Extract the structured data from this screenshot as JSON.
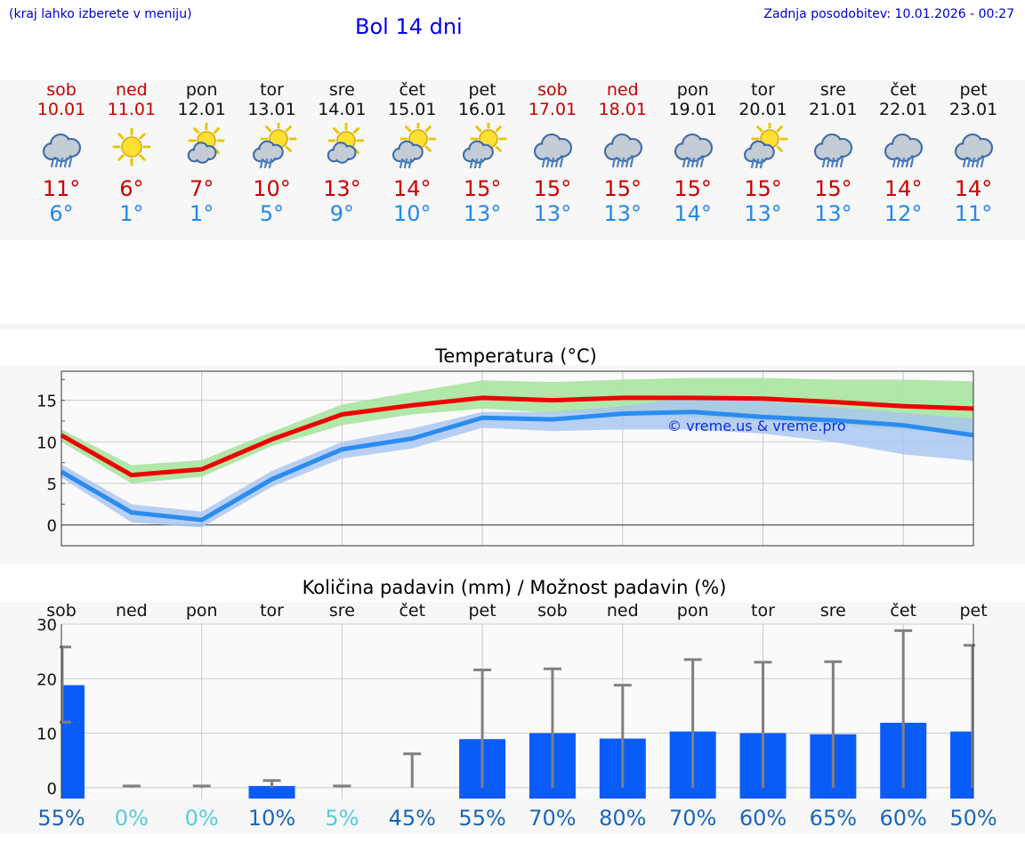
{
  "header": {
    "region_hint": "(kraj lahko izberete v meniju)",
    "title": "Bol 14 dni",
    "last_update": "Zadnja posodobitev: 10.01.2026 - 00:27"
  },
  "days": [
    {
      "name": "sob",
      "date": "10.01",
      "weekend": true,
      "icon": "cloud-rain-icon",
      "tmax": "11°",
      "tmin": "6°"
    },
    {
      "name": "ned",
      "date": "11.01",
      "weekend": true,
      "icon": "sun-icon",
      "tmax": "6°",
      "tmin": "1°"
    },
    {
      "name": "pon",
      "date": "12.01",
      "weekend": false,
      "icon": "sun-cloud-icon",
      "tmax": "7°",
      "tmin": "1°"
    },
    {
      "name": "tor",
      "date": "13.01",
      "weekend": false,
      "icon": "sun-cloud-rain-icon",
      "tmax": "10°",
      "tmin": "5°"
    },
    {
      "name": "sre",
      "date": "14.01",
      "weekend": false,
      "icon": "sun-cloud-icon",
      "tmax": "13°",
      "tmin": "9°"
    },
    {
      "name": "čet",
      "date": "15.01",
      "weekend": false,
      "icon": "sun-cloud-rain-icon",
      "tmax": "14°",
      "tmin": "10°"
    },
    {
      "name": "pet",
      "date": "16.01",
      "weekend": false,
      "icon": "sun-cloud-rain-icon",
      "tmax": "15°",
      "tmin": "13°"
    },
    {
      "name": "sob",
      "date": "17.01",
      "weekend": true,
      "icon": "cloud-rain-icon",
      "tmax": "15°",
      "tmin": "13°"
    },
    {
      "name": "ned",
      "date": "18.01",
      "weekend": true,
      "icon": "cloud-rain-icon",
      "tmax": "15°",
      "tmin": "13°"
    },
    {
      "name": "pon",
      "date": "19.01",
      "weekend": false,
      "icon": "cloud-rain-icon",
      "tmax": "15°",
      "tmin": "14°"
    },
    {
      "name": "tor",
      "date": "20.01",
      "weekend": false,
      "icon": "sun-cloud-rain-icon",
      "tmax": "15°",
      "tmin": "13°"
    },
    {
      "name": "sre",
      "date": "21.01",
      "weekend": false,
      "icon": "cloud-rain-icon",
      "tmax": "15°",
      "tmin": "13°"
    },
    {
      "name": "čet",
      "date": "22.01",
      "weekend": false,
      "icon": "cloud-rain-icon",
      "tmax": "14°",
      "tmin": "12°"
    },
    {
      "name": "pet",
      "date": "23.01",
      "weekend": false,
      "icon": "cloud-rain-icon",
      "tmax": "14°",
      "tmin": "11°"
    }
  ],
  "colors": {
    "max_line": "#ee0000",
    "min_line": "#2a8cf0",
    "max_band": "#a8e4a0",
    "min_band": "#a8c4f2",
    "bar": "#0a5cf8",
    "whisker": "#808080",
    "weekend": "#cc0000",
    "pct_high": "#1a66b8",
    "pct_low": "#55ccdd"
  },
  "chart_data": [
    {
      "type": "line",
      "title": "Temperatura (°C)",
      "watermark": "© vreme.us & vreme.pro",
      "x_index": [
        0,
        1,
        2,
        3,
        4,
        5,
        6,
        7,
        8,
        9,
        10,
        11,
        12,
        13
      ],
      "y_ticks": [
        "0",
        "5",
        "10",
        "15"
      ],
      "ylim": [
        -2.5,
        18.5
      ],
      "series": [
        {
          "name": "max",
          "values": [
            10.8,
            6.0,
            6.7,
            10.3,
            13.3,
            14.4,
            15.3,
            15.0,
            15.3,
            15.3,
            15.2,
            14.8,
            14.3,
            14.0
          ],
          "band_low": [
            10.0,
            5.0,
            5.8,
            9.5,
            12.0,
            13.3,
            14.0,
            13.5,
            13.5,
            13.0,
            12.5,
            12.0,
            11.5,
            11.0
          ],
          "band_high": [
            11.5,
            7.2,
            7.8,
            11.2,
            14.5,
            16.0,
            17.4,
            17.2,
            17.5,
            17.7,
            17.7,
            17.5,
            17.5,
            17.3
          ]
        },
        {
          "name": "min",
          "values": [
            6.4,
            1.5,
            0.6,
            5.5,
            9.1,
            10.4,
            12.9,
            12.7,
            13.4,
            13.6,
            13.0,
            12.6,
            12.0,
            10.8
          ],
          "band_low": [
            5.7,
            0.3,
            -0.3,
            4.6,
            8.0,
            9.2,
            11.7,
            11.3,
            11.5,
            11.5,
            11.0,
            10.0,
            8.5,
            7.7
          ],
          "band_high": [
            7.3,
            2.5,
            1.6,
            6.5,
            10.0,
            11.6,
            13.6,
            13.6,
            14.3,
            15.4,
            14.9,
            14.2,
            13.5,
            12.8
          ]
        }
      ]
    },
    {
      "type": "bar",
      "title": "Količina padavin (mm) / Možnost padavin (%)",
      "categories": [
        "sob",
        "ned",
        "pon",
        "tor",
        "sre",
        "čet",
        "pet",
        "sob",
        "ned",
        "pon",
        "tor",
        "sre",
        "čet",
        "pet"
      ],
      "values": [
        18.8,
        0,
        0,
        0.3,
        0,
        0,
        8.9,
        10.0,
        9.0,
        10.3,
        10.0,
        9.8,
        11.9,
        10.3
      ],
      "whisker_high": [
        25.8,
        0.3,
        0.3,
        1.3,
        0.3,
        6.2,
        21.6,
        21.8,
        18.8,
        23.5,
        23.0,
        23.1,
        28.8,
        26.1
      ],
      "whisker_low": [
        12.0,
        0,
        0,
        0,
        0,
        0,
        0,
        0,
        0,
        0,
        0,
        0,
        0,
        0
      ],
      "probability": [
        "55%",
        "0%",
        "0%",
        "10%",
        "5%",
        "45%",
        "55%",
        "70%",
        "80%",
        "70%",
        "60%",
        "65%",
        "60%",
        "50%"
      ],
      "y_ticks": [
        "0",
        "10",
        "20",
        "30"
      ],
      "ylim": [
        -2,
        30
      ]
    }
  ]
}
